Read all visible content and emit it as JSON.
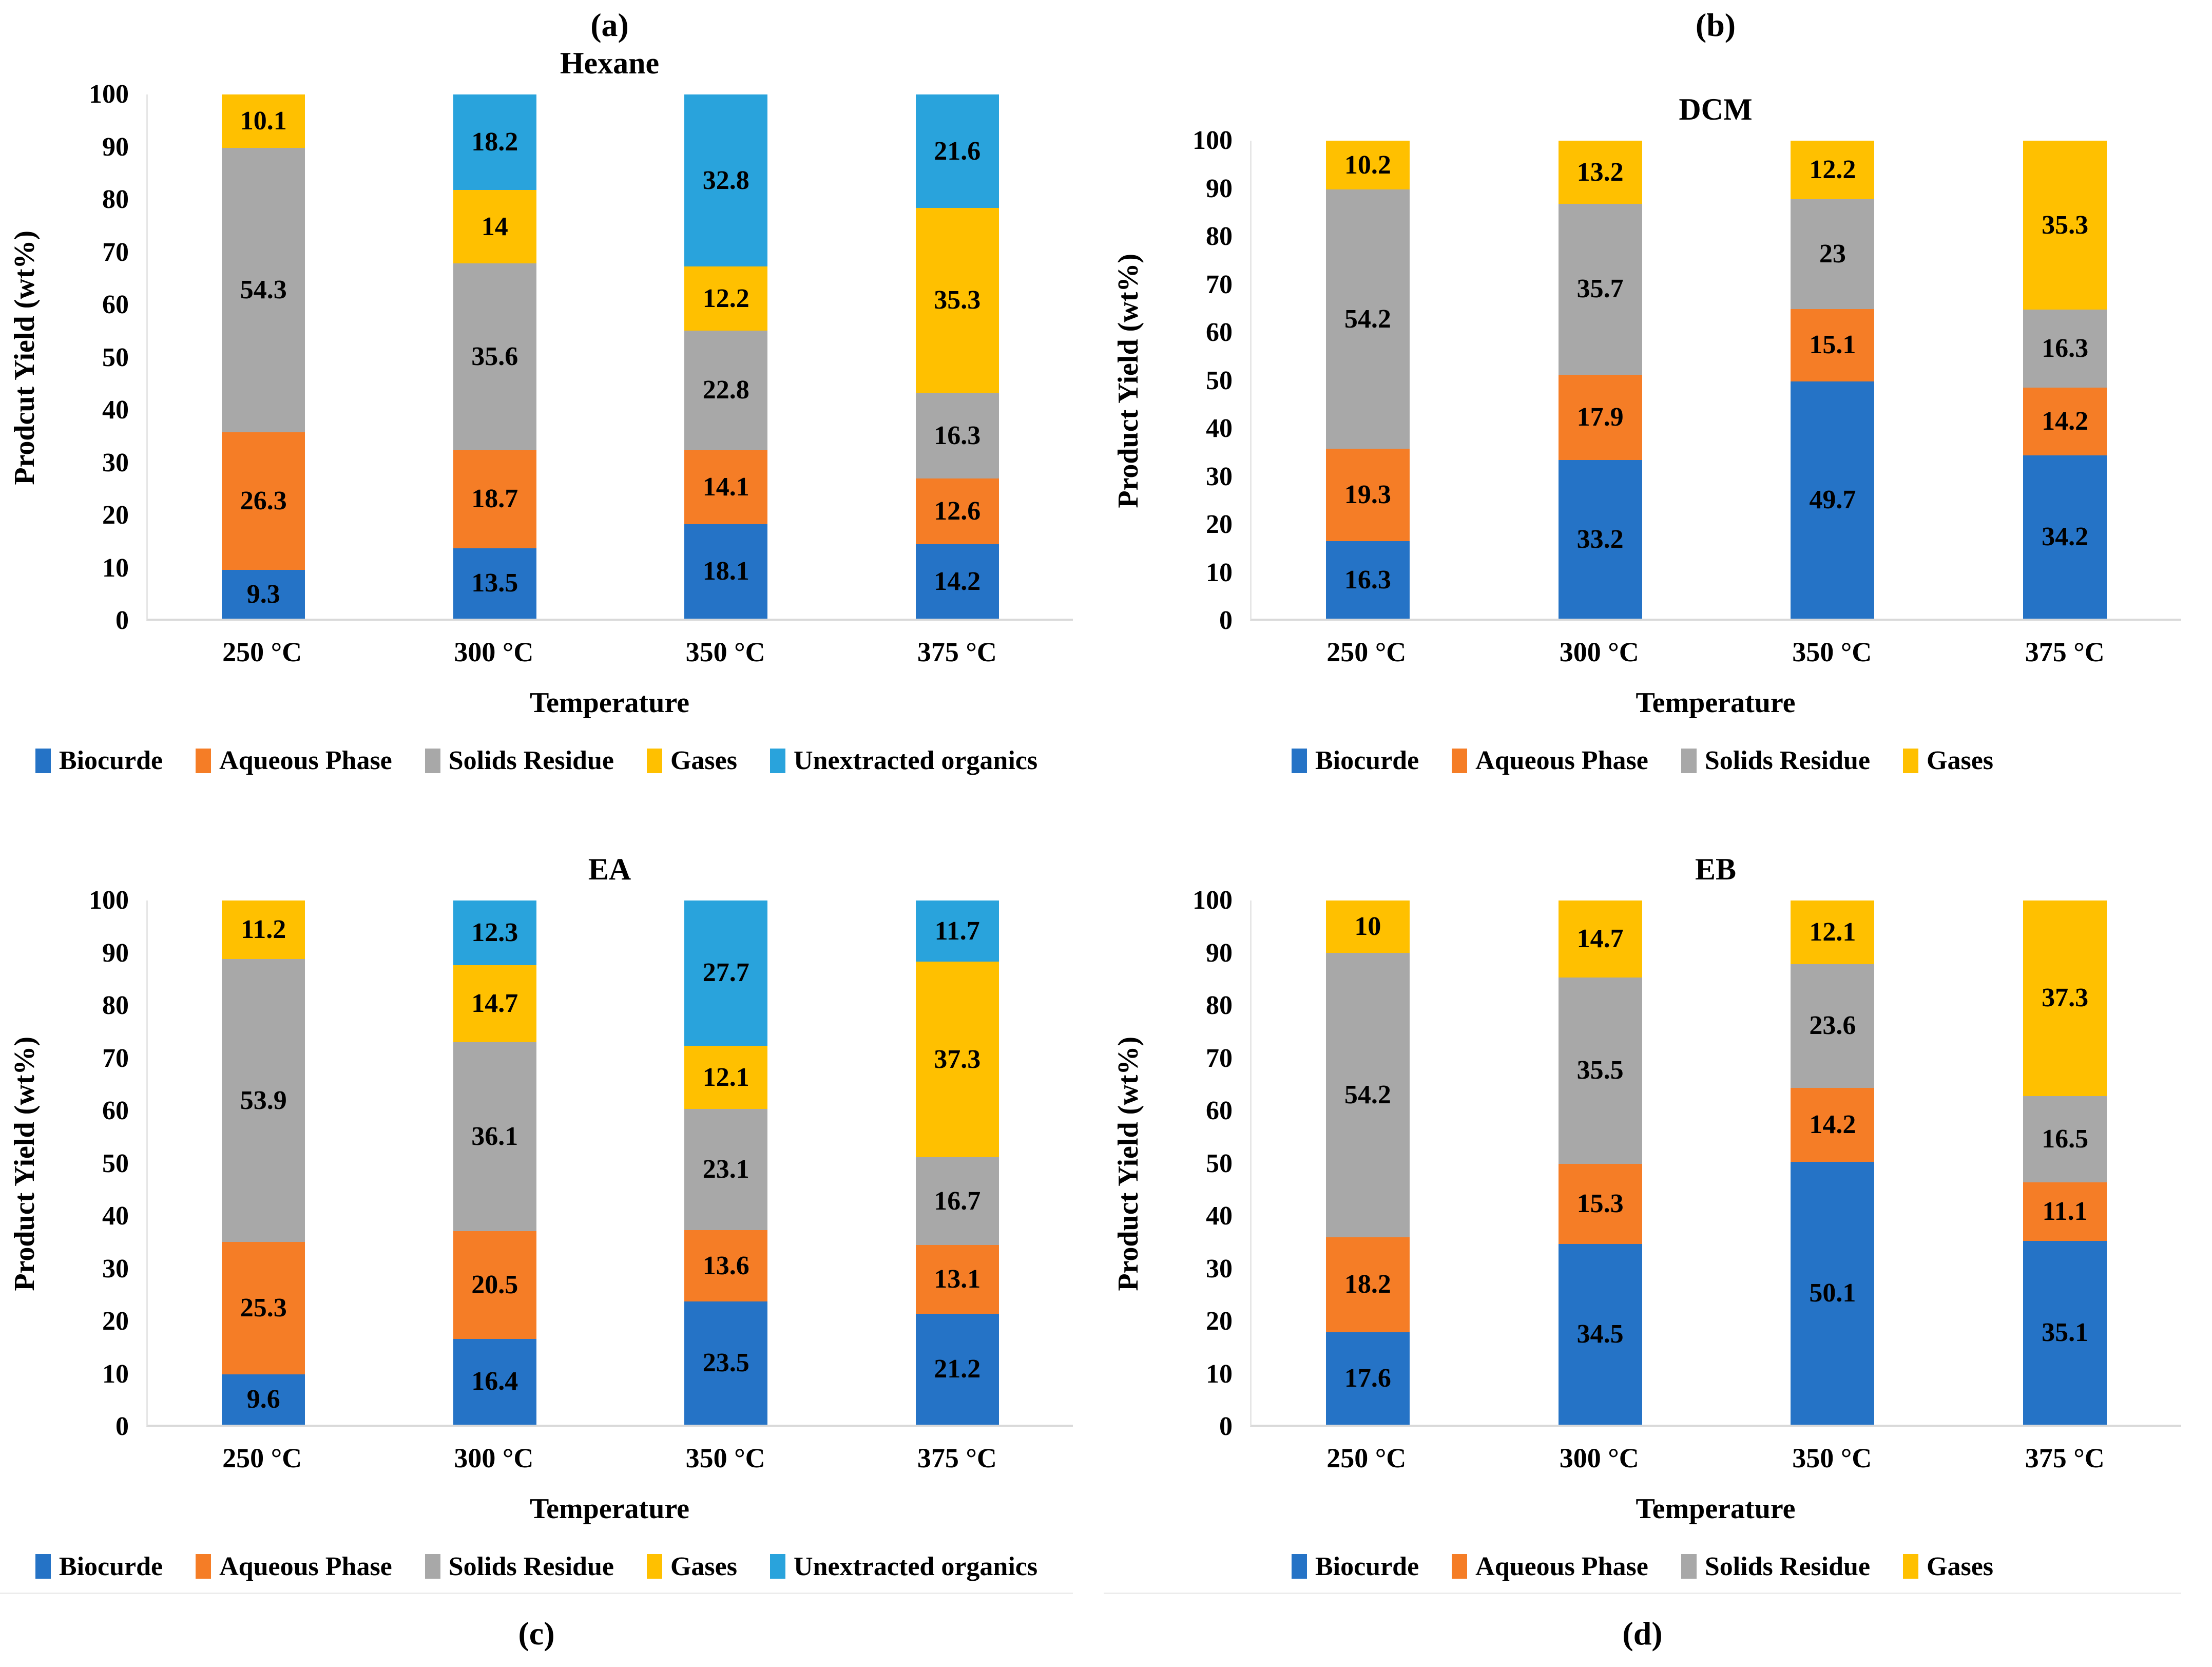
{
  "colors": {
    "series": {
      "Biocurde": "#2573C6",
      "Aqueous Phase": "#F57D26",
      "Solids Residue": "#A8A8A8",
      "Gases": "#FFC000",
      "Unextracted organics": "#29A3DC"
    },
    "axis_line": "#D9D9D9",
    "text": "#000000",
    "background": "#FFFFFF"
  },
  "y_ticks": [
    0,
    10,
    20,
    30,
    40,
    50,
    60,
    70,
    80,
    90,
    100
  ],
  "chart_data": [
    {
      "type": "bar",
      "stacked": true,
      "panel_id": "a",
      "panel_label": "(a)",
      "label_position": "top",
      "title": "Hexane",
      "xlabel": "Temperature",
      "ylabel": "Prodcut Yield (wt%)",
      "ylim": [
        0,
        100
      ],
      "y_tick_step": 10,
      "grid": false,
      "legend_position": "bottom",
      "categories": [
        "250 °C",
        "300 °C",
        "350 °C",
        "375 °C"
      ],
      "series": [
        {
          "name": "Biocurde",
          "values": [
            9.3,
            13.5,
            18.1,
            14.2
          ]
        },
        {
          "name": "Aqueous Phase",
          "values": [
            26.3,
            18.7,
            14.1,
            12.6
          ]
        },
        {
          "name": "Solids Residue",
          "values": [
            54.3,
            35.6,
            22.8,
            16.3
          ]
        },
        {
          "name": "Gases",
          "values": [
            10.1,
            14,
            12.2,
            35.3
          ]
        },
        {
          "name": "Unextracted organics",
          "values": [
            0,
            18.2,
            32.8,
            21.6
          ]
        }
      ]
    },
    {
      "type": "bar",
      "stacked": true,
      "panel_id": "b",
      "panel_label": "(b)",
      "label_position": "top",
      "title": "DCM",
      "xlabel": "Temperature",
      "ylabel": "Product Yield (wt%)",
      "ylim": [
        0,
        100
      ],
      "y_tick_step": 10,
      "grid": false,
      "legend_position": "bottom",
      "categories": [
        "250 °C",
        "300 °C",
        "350 °C",
        "375 °C"
      ],
      "series": [
        {
          "name": "Biocurde",
          "values": [
            16.3,
            33.2,
            49.7,
            34.2
          ]
        },
        {
          "name": "Aqueous Phase",
          "values": [
            19.3,
            17.9,
            15.1,
            14.2
          ]
        },
        {
          "name": "Solids Residue",
          "values": [
            54.2,
            35.7,
            23,
            16.3
          ]
        },
        {
          "name": "Gases",
          "values": [
            10.2,
            13.2,
            12.2,
            35.3
          ]
        }
      ]
    },
    {
      "type": "bar",
      "stacked": true,
      "panel_id": "c",
      "panel_label": "(c)",
      "label_position": "bottom",
      "title": "EA",
      "xlabel": "Temperature",
      "ylabel": "Product Yield (wt%)",
      "ylim": [
        0,
        100
      ],
      "y_tick_step": 10,
      "grid": false,
      "legend_position": "bottom",
      "categories": [
        "250 °C",
        "300 °C",
        "350 °C",
        "375 °C"
      ],
      "series": [
        {
          "name": "Biocurde",
          "values": [
            9.6,
            16.4,
            23.5,
            21.2
          ]
        },
        {
          "name": "Aqueous Phase",
          "values": [
            25.3,
            20.5,
            13.6,
            13.1
          ]
        },
        {
          "name": "Solids Residue",
          "values": [
            53.9,
            36.1,
            23.1,
            16.7
          ]
        },
        {
          "name": "Gases",
          "values": [
            11.2,
            14.7,
            12.1,
            37.3
          ]
        },
        {
          "name": "Unextracted organics",
          "values": [
            0,
            12.3,
            27.7,
            11.7
          ]
        }
      ]
    },
    {
      "type": "bar",
      "stacked": true,
      "panel_id": "d",
      "panel_label": "(d)",
      "label_position": "bottom",
      "title": "EB",
      "xlabel": "Temperature",
      "ylabel": "Product Yield (wt%)",
      "ylim": [
        0,
        100
      ],
      "y_tick_step": 10,
      "grid": false,
      "legend_position": "bottom",
      "categories": [
        "250 °C",
        "300 °C",
        "350 °C",
        "375 °C"
      ],
      "series": [
        {
          "name": "Biocurde",
          "values": [
            17.6,
            34.5,
            50.1,
            35.1
          ]
        },
        {
          "name": "Aqueous Phase",
          "values": [
            18.2,
            15.3,
            14.2,
            11.1
          ]
        },
        {
          "name": "Solids Residue",
          "values": [
            54.2,
            35.5,
            23.6,
            16.5
          ]
        },
        {
          "name": "Gases",
          "values": [
            10,
            14.7,
            12.1,
            37.3
          ]
        }
      ]
    }
  ]
}
